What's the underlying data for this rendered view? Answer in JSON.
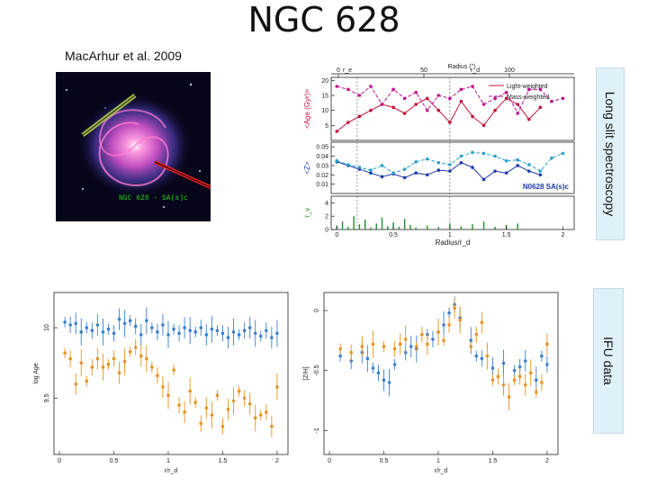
{
  "title": "NGC 628",
  "citation": "MacArhur et al. 2009",
  "galaxy_caption": "NGC 628  - SA(s)c",
  "side_labels": {
    "longslit": "Long slit spectroscopy",
    "ifu": "IFU data"
  },
  "colors": {
    "blue": "#3b7fd0",
    "orange": "#e8921e",
    "crimson": "#c0103a",
    "magenta": "#c0138f",
    "navy": "#1f3aa8",
    "cyan": "#2aa3c9",
    "green": "#1f8f2a"
  },
  "chart_data": [
    {
      "type": "line",
      "name": "longslit-spectroscopy",
      "top_axis": {
        "label": "Radius  ('')",
        "ticks": [
          0,
          50,
          100
        ],
        "markers": [
          "r_e",
          "r_d"
        ]
      },
      "legend": [
        "Light-weighted",
        "Mass-weighted"
      ],
      "galaxy_tag": "N0628 SA(s)c",
      "xlabel": "Radius/r_d",
      "xlim": [
        -0.05,
        2.1
      ],
      "xticks": [
        0,
        0.5,
        1,
        1.5,
        2
      ],
      "xtick_labels": [
        "0",
        "0.5",
        "1",
        "1.5",
        "2"
      ],
      "panels": [
        {
          "ylabel": "<Age (Gyr)>",
          "ylim": [
            0,
            21
          ],
          "yticks": [
            5,
            10,
            15,
            20
          ],
          "series": [
            {
              "name": "light-weighted",
              "color": "#c0103a",
              "x": [
                0.0,
                0.1,
                0.2,
                0.3,
                0.4,
                0.5,
                0.6,
                0.7,
                0.8,
                0.9,
                1.0,
                1.1,
                1.2,
                1.3,
                1.4,
                1.5,
                1.6,
                1.7,
                1.8
              ],
              "y": [
                3,
                6,
                8,
                10,
                12,
                11,
                9,
                12,
                14,
                10,
                6,
                13,
                8,
                5,
                10,
                14,
                12,
                7,
                11
              ]
            },
            {
              "name": "mass-weighted",
              "color": "#c0138f",
              "x": [
                0.0,
                0.1,
                0.2,
                0.3,
                0.4,
                0.5,
                0.6,
                0.7,
                0.8,
                0.9,
                1.0,
                1.1,
                1.2,
                1.3,
                1.4,
                1.5,
                1.6,
                1.7,
                1.8,
                1.9,
                2.0
              ],
              "y": [
                18,
                17,
                15,
                18,
                12,
                17,
                14,
                16,
                10,
                15,
                14,
                17,
                18,
                12,
                14,
                16,
                9,
                17,
                17,
                13,
                14
              ]
            }
          ]
        },
        {
          "ylabel": "<Z>",
          "ylim": [
            0,
            0.055
          ],
          "yticks": [
            0.01,
            0.02,
            0.03,
            0.04,
            0.05
          ],
          "ytick_labels": [
            "0.01",
            "0.02",
            "0.03",
            "0.04",
            "0.05"
          ],
          "series": [
            {
              "name": "light-weighted",
              "color": "#1f3aa8",
              "x": [
                0.0,
                0.1,
                0.2,
                0.3,
                0.4,
                0.5,
                0.6,
                0.7,
                0.8,
                0.9,
                1.0,
                1.1,
                1.2,
                1.3,
                1.4,
                1.5,
                1.6,
                1.7,
                1.8
              ],
              "y": [
                0.034,
                0.03,
                0.026,
                0.022,
                0.018,
                0.021,
                0.017,
                0.022,
                0.02,
                0.025,
                0.024,
                0.033,
                0.028,
                0.015,
                0.024,
                0.022,
                0.03,
                0.024,
                0.02
              ]
            },
            {
              "name": "mass-weighted",
              "color": "#2aa3c9",
              "x": [
                0.0,
                0.1,
                0.2,
                0.3,
                0.4,
                0.5,
                0.6,
                0.7,
                0.8,
                0.9,
                1.0,
                1.1,
                1.2,
                1.3,
                1.4,
                1.5,
                1.6,
                1.7,
                1.8,
                1.9,
                2.0
              ],
              "y": [
                0.035,
                0.031,
                0.028,
                0.025,
                0.03,
                0.022,
                0.026,
                0.034,
                0.037,
                0.033,
                0.031,
                0.04,
                0.044,
                0.043,
                0.04,
                0.035,
                0.036,
                0.031,
                0.024,
                0.038,
                0.043
              ]
            }
          ]
        },
        {
          "ylabel": "τ_v",
          "ylim": [
            0,
            5
          ],
          "yticks": [
            0,
            2,
            4
          ],
          "series": [
            {
              "name": "extinction",
              "color": "#1f8f2a",
              "x": [
                0.0,
                0.05,
                0.1,
                0.15,
                0.2,
                0.25,
                0.3,
                0.35,
                0.4,
                0.45,
                0.5,
                0.55,
                0.6,
                0.65,
                0.7,
                0.8,
                0.9,
                1.0,
                1.1,
                1.2,
                1.3,
                1.4,
                1.5,
                1.6
              ],
              "y": [
                0.6,
                1.2,
                0.4,
                2.0,
                0.8,
                1.5,
                0.3,
                0.9,
                1.8,
                0.5,
                1.1,
                0.4,
                1.6,
                0.7,
                0.3,
                0.6,
                0.4,
                0.9,
                0.5,
                0.8,
                1.2,
                0.4,
                0.7,
                0.9
              ]
            }
          ]
        }
      ]
    },
    {
      "type": "scatter",
      "name": "ifu-log-age",
      "xlabel": "r/r_d",
      "ylabel": "log Age",
      "xlim": [
        -0.05,
        2.1
      ],
      "xticks": [
        0,
        0.5,
        1,
        1.5,
        2
      ],
      "xtick_labels": [
        "0",
        "0.5",
        "1",
        "1.5",
        "2"
      ],
      "ylim": [
        9.1,
        10.25
      ],
      "yticks": [
        9.5,
        10
      ],
      "ytick_labels": [
        "9.5",
        "10"
      ],
      "series": [
        {
          "name": "blue",
          "color": "#3b7fd0",
          "x": [
            0.05,
            0.1,
            0.15,
            0.2,
            0.25,
            0.3,
            0.35,
            0.4,
            0.45,
            0.5,
            0.55,
            0.6,
            0.65,
            0.7,
            0.75,
            0.8,
            0.85,
            0.9,
            0.95,
            1.0,
            1.05,
            1.1,
            1.15,
            1.2,
            1.25,
            1.3,
            1.35,
            1.4,
            1.45,
            1.5,
            1.55,
            1.6,
            1.65,
            1.7,
            1.75,
            1.8,
            1.85,
            1.9,
            1.95,
            2.0
          ],
          "y": [
            10.04,
            10.02,
            10.03,
            9.97,
            10.0,
            9.98,
            10.02,
            9.97,
            9.99,
            9.96,
            10.06,
            10.03,
            10.05,
            10.01,
            9.95,
            10.05,
            10.0,
            9.97,
            10.02,
            9.95,
            9.99,
            9.96,
            10.0,
            9.98,
            9.97,
            10.0,
            9.95,
            9.99,
            9.98,
            9.96,
            9.93,
            9.97,
            9.95,
            9.98,
            10.0,
            9.96,
            9.94,
            9.98,
            9.93,
            9.96
          ]
        },
        {
          "name": "orange",
          "color": "#e8921e",
          "x": [
            0.05,
            0.1,
            0.15,
            0.2,
            0.25,
            0.3,
            0.35,
            0.4,
            0.45,
            0.5,
            0.55,
            0.6,
            0.65,
            0.7,
            0.75,
            0.8,
            0.85,
            0.9,
            0.95,
            1.0,
            1.05,
            1.1,
            1.15,
            1.2,
            1.25,
            1.3,
            1.35,
            1.4,
            1.45,
            1.5,
            1.55,
            1.6,
            1.65,
            1.7,
            1.75,
            1.8,
            1.85,
            1.9,
            1.95,
            2.0
          ],
          "y": [
            9.82,
            9.78,
            9.6,
            9.75,
            9.62,
            9.72,
            9.78,
            9.72,
            9.74,
            9.78,
            9.68,
            9.76,
            9.83,
            9.86,
            9.8,
            9.78,
            9.72,
            9.66,
            9.58,
            9.52,
            9.7,
            9.45,
            9.4,
            9.55,
            9.47,
            9.32,
            9.43,
            9.38,
            9.52,
            9.3,
            9.42,
            9.48,
            9.55,
            9.5,
            9.46,
            9.36,
            9.38,
            9.4,
            9.3,
            9.58
          ]
        }
      ]
    },
    {
      "type": "scatter",
      "name": "ifu-metallicity",
      "xlabel": "r/r_d",
      "ylabel": "[Z/H]",
      "xlim": [
        -0.05,
        2.1
      ],
      "xticks": [
        0,
        0.5,
        1,
        1.5,
        2
      ],
      "xtick_labels": [
        "0",
        "0.5",
        "1",
        "1.5",
        "2"
      ],
      "ylim": [
        -1.2,
        0.15
      ],
      "yticks": [
        0,
        -0.5,
        -1
      ],
      "ytick_labels": [
        "0",
        "-0.5",
        "-1"
      ],
      "series": [
        {
          "name": "blue",
          "color": "#3b7fd0",
          "x": [
            0.1,
            0.2,
            0.3,
            0.35,
            0.4,
            0.45,
            0.5,
            0.55,
            0.6,
            0.7,
            0.75,
            0.8,
            0.9,
            0.95,
            1.0,
            1.05,
            1.1,
            1.15,
            1.2,
            1.3,
            1.35,
            1.4,
            1.5,
            1.6,
            1.7,
            1.75,
            1.8,
            1.9,
            1.95,
            2.0
          ],
          "y": [
            -0.38,
            -0.42,
            -0.35,
            -0.4,
            -0.48,
            -0.52,
            -0.58,
            -0.6,
            -0.45,
            -0.35,
            -0.3,
            -0.32,
            -0.2,
            -0.24,
            -0.18,
            -0.12,
            -0.02,
            0.05,
            -0.06,
            -0.25,
            -0.38,
            -0.4,
            -0.48,
            -0.44,
            -0.5,
            -0.47,
            -0.42,
            -0.58,
            -0.38,
            -0.45
          ]
        },
        {
          "name": "orange",
          "color": "#e8921e",
          "x": [
            0.1,
            0.2,
            0.3,
            0.4,
            0.5,
            0.6,
            0.65,
            0.7,
            0.8,
            0.85,
            0.9,
            1.0,
            1.05,
            1.1,
            1.15,
            1.2,
            1.3,
            1.35,
            1.4,
            1.45,
            1.5,
            1.55,
            1.6,
            1.65,
            1.7,
            1.75,
            1.8,
            1.85,
            1.9,
            1.95,
            2.0
          ],
          "y": [
            -0.32,
            -0.35,
            -0.3,
            -0.28,
            -0.3,
            -0.32,
            -0.28,
            -0.24,
            -0.3,
            -0.2,
            -0.28,
            -0.18,
            -0.25,
            -0.12,
            0.02,
            -0.08,
            -0.3,
            -0.2,
            -0.1,
            -0.38,
            -0.58,
            -0.55,
            -0.62,
            -0.72,
            -0.58,
            -0.55,
            -0.62,
            -0.52,
            -0.68,
            -0.6,
            -0.28
          ]
        }
      ]
    }
  ]
}
